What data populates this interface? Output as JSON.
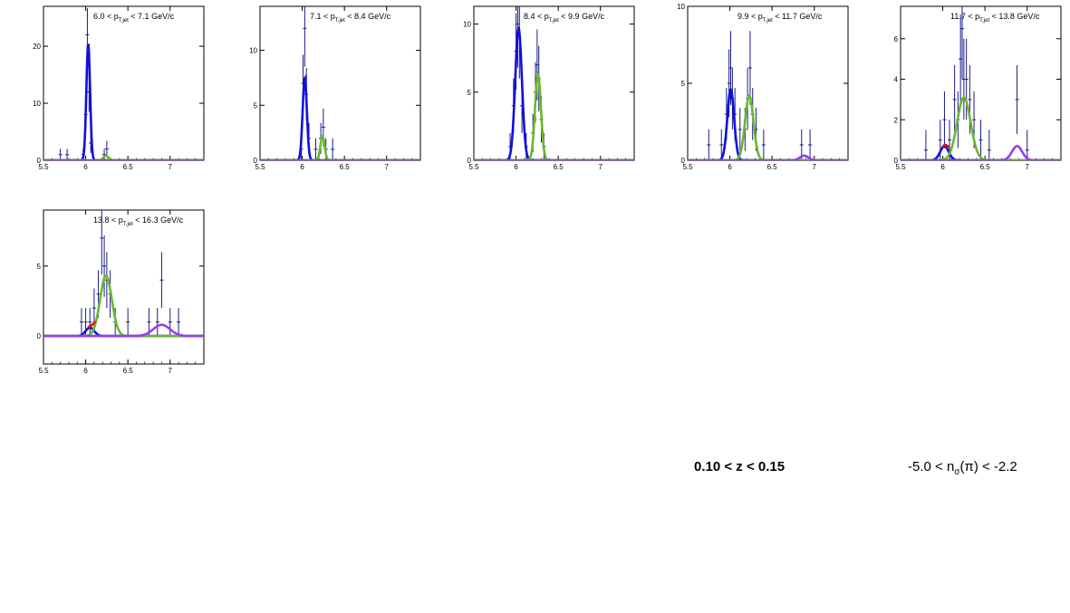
{
  "chart_data": [
    {
      "type": "scatter",
      "title": "6.0 < p_{T,jet} < 7.1 GeV/c",
      "title_parts": {
        "pre": "6.0 < p",
        "sub": "T,jet",
        "post": " < 7.1 GeV/c"
      },
      "xlim": [
        5.5,
        7.4
      ],
      "ylim": [
        0,
        27
      ],
      "xticks": [
        "5.5",
        "6",
        "6.5",
        "7"
      ],
      "xtick_values": [
        5.5,
        6.0,
        6.5,
        7.0
      ],
      "yticks": [
        "0",
        "10",
        "20"
      ],
      "ytick_values": [
        0,
        10,
        20
      ],
      "points": [
        {
          "x": 5.7,
          "y": 1.0,
          "err": 1.0
        },
        {
          "x": 5.78,
          "y": 1.0,
          "err": 1.0
        },
        {
          "x": 5.97,
          "y": 1.0,
          "err": 1.0
        },
        {
          "x": 6.0,
          "y": 8.0,
          "err": 3.0
        },
        {
          "x": 6.02,
          "y": 22.0,
          "err": 4.7
        },
        {
          "x": 6.04,
          "y": 12.0,
          "err": 3.5
        },
        {
          "x": 6.06,
          "y": 3.0,
          "err": 1.7
        },
        {
          "x": 6.22,
          "y": 1.0,
          "err": 1.0
        },
        {
          "x": 6.25,
          "y": 2.0,
          "err": 1.4
        }
      ],
      "fits": [
        {
          "name": "",
          "color": "#1010dd",
          "components": [
            {
              "amp": 20.5,
              "mu": 6.03,
              "sigma": 0.022
            }
          ]
        },
        {
          "name": "",
          "color": "#6ab82e",
          "components": [
            {
              "amp": 0.8,
              "mu": 6.24,
              "sigma": 0.03
            }
          ]
        },
        {
          "name": "",
          "color": "#9a3ee8",
          "components": [
            {
              "amp": 0.0,
              "mu": 6.9,
              "sigma": 0.05
            }
          ]
        }
      ]
    },
    {
      "type": "scatter",
      "title": "7.1 < p_{T,jet} < 8.4 GeV/c",
      "title_parts": {
        "pre": "7.1 < p",
        "sub": "T,jet",
        "post": " < 8.4 GeV/c"
      },
      "xlim": [
        5.5,
        7.4
      ],
      "ylim": [
        0,
        14
      ],
      "xticks": [
        "5.5",
        "6",
        "6.5",
        "7"
      ],
      "xtick_values": [
        5.5,
        6.0,
        6.5,
        7.0
      ],
      "yticks": [
        "0",
        "5",
        "10"
      ],
      "ytick_values": [
        0,
        5,
        10
      ],
      "points": [
        {
          "x": 5.99,
          "y": 1.0,
          "err": 1.0
        },
        {
          "x": 6.01,
          "y": 7.0,
          "err": 2.6
        },
        {
          "x": 6.03,
          "y": 12.0,
          "err": 3.5
        },
        {
          "x": 6.05,
          "y": 6.0,
          "err": 2.4
        },
        {
          "x": 6.08,
          "y": 2.0,
          "err": 1.4
        },
        {
          "x": 6.16,
          "y": 1.0,
          "err": 1.0
        },
        {
          "x": 6.22,
          "y": 2.0,
          "err": 1.4
        },
        {
          "x": 6.25,
          "y": 3.0,
          "err": 1.7
        },
        {
          "x": 6.28,
          "y": 1.0,
          "err": 1.0
        },
        {
          "x": 6.36,
          "y": 1.0,
          "err": 1.0
        }
      ],
      "fits": [
        {
          "name": "",
          "color": "#1010dd",
          "components": [
            {
              "amp": 7.5,
              "mu": 6.03,
              "sigma": 0.025
            }
          ]
        },
        {
          "name": "",
          "color": "#6ab82e",
          "components": [
            {
              "amp": 2.2,
              "mu": 6.24,
              "sigma": 0.025
            }
          ]
        },
        {
          "name": "",
          "color": "#9a3ee8",
          "components": [
            {
              "amp": 0.0,
              "mu": 6.9,
              "sigma": 0.05
            }
          ]
        }
      ]
    },
    {
      "type": "scatter",
      "title": "8.4 < p_{T,jet} < 9.9 GeV/c",
      "title_parts": {
        "pre": "8.4 < p",
        "sub": "T,jet",
        "post": " < 9.9 GeV/c"
      },
      "xlim": [
        5.5,
        7.4
      ],
      "ylim": [
        0,
        11.3
      ],
      "xticks": [
        "5.5",
        "6",
        "6.5",
        "7"
      ],
      "xtick_values": [
        5.5,
        6.0,
        6.5,
        7.0
      ],
      "yticks": [
        "0",
        "5",
        "10"
      ],
      "ytick_values": [
        0,
        5,
        10
      ],
      "points": [
        {
          "x": 5.93,
          "y": 1.0,
          "err": 1.0
        },
        {
          "x": 5.97,
          "y": 4.0,
          "err": 2.0
        },
        {
          "x": 6.0,
          "y": 8.0,
          "err": 2.8
        },
        {
          "x": 6.02,
          "y": 10.0,
          "err": 3.2
        },
        {
          "x": 6.04,
          "y": 9.0,
          "err": 3.0
        },
        {
          "x": 6.07,
          "y": 4.0,
          "err": 2.0
        },
        {
          "x": 6.12,
          "y": 1.0,
          "err": 1.0
        },
        {
          "x": 6.2,
          "y": 2.0,
          "err": 1.4
        },
        {
          "x": 6.23,
          "y": 5.0,
          "err": 2.2
        },
        {
          "x": 6.25,
          "y": 7.0,
          "err": 2.6
        },
        {
          "x": 6.27,
          "y": 6.0,
          "err": 2.4
        },
        {
          "x": 6.3,
          "y": 3.0,
          "err": 1.7
        },
        {
          "x": 6.33,
          "y": 1.0,
          "err": 1.0
        }
      ],
      "fits": [
        {
          "name": "",
          "color": "#1010dd",
          "components": [
            {
              "amp": 9.7,
              "mu": 6.03,
              "sigma": 0.04
            }
          ]
        },
        {
          "name": "",
          "color": "#6ab82e",
          "components": [
            {
              "amp": 6.3,
              "mu": 6.26,
              "sigma": 0.035
            }
          ]
        },
        {
          "name": "",
          "color": "#9a3ee8",
          "components": [
            {
              "amp": 0.0,
              "mu": 6.9,
              "sigma": 0.05
            }
          ]
        }
      ]
    },
    {
      "type": "scatter",
      "title": "9.9 < p_{T,jet} < 11.7 GeV/c",
      "title_parts": {
        "pre": "9.9 < p",
        "sub": "T,jet",
        "post": " < 11.7 GeV/c"
      },
      "xlim": [
        5.5,
        7.4
      ],
      "ylim": [
        0,
        10
      ],
      "xticks": [
        "5.5",
        "6",
        "6.5",
        "7"
      ],
      "xtick_values": [
        5.5,
        6.0,
        6.5,
        7.0
      ],
      "yticks": [
        "0",
        "5",
        "10"
      ],
      "ytick_values": [
        0,
        5,
        10
      ],
      "points": [
        {
          "x": 5.75,
          "y": 1.0,
          "err": 1.0
        },
        {
          "x": 5.9,
          "y": 1.0,
          "err": 1.0
        },
        {
          "x": 5.96,
          "y": 3.0,
          "err": 1.7
        },
        {
          "x": 5.99,
          "y": 5.0,
          "err": 2.2
        },
        {
          "x": 6.01,
          "y": 6.0,
          "err": 2.4
        },
        {
          "x": 6.03,
          "y": 4.0,
          "err": 2.0
        },
        {
          "x": 6.06,
          "y": 3.0,
          "err": 1.7
        },
        {
          "x": 6.12,
          "y": 2.0,
          "err": 1.4
        },
        {
          "x": 6.18,
          "y": 2.0,
          "err": 1.4
        },
        {
          "x": 6.21,
          "y": 4.0,
          "err": 2.0
        },
        {
          "x": 6.24,
          "y": 6.0,
          "err": 2.4
        },
        {
          "x": 6.27,
          "y": 3.0,
          "err": 1.7
        },
        {
          "x": 6.31,
          "y": 2.0,
          "err": 1.4
        },
        {
          "x": 6.4,
          "y": 1.0,
          "err": 1.0
        },
        {
          "x": 6.85,
          "y": 1.0,
          "err": 1.0
        },
        {
          "x": 6.95,
          "y": 1.0,
          "err": 1.0
        }
      ],
      "fits": [
        {
          "name": "",
          "color": "#1010dd",
          "components": [
            {
              "amp": 4.6,
              "mu": 6.01,
              "sigma": 0.04
            }
          ]
        },
        {
          "name": "",
          "color": "#6ab82e",
          "components": [
            {
              "amp": 4.2,
              "mu": 6.23,
              "sigma": 0.05
            }
          ]
        },
        {
          "name": "",
          "color": "#9a3ee8",
          "components": [
            {
              "amp": 0.3,
              "mu": 6.88,
              "sigma": 0.05
            }
          ]
        }
      ]
    },
    {
      "type": "scatter",
      "title": "11.7 < p_{T,jet} < 13.8 GeV/c",
      "title_parts": {
        "pre": "11.7 < p",
        "sub": "T,jet",
        "post": " < 13.8 GeV/c"
      },
      "xlim": [
        5.5,
        7.4
      ],
      "ylim": [
        0,
        7.6
      ],
      "xticks": [
        "5.5",
        "6",
        "6.5",
        "7"
      ],
      "xtick_values": [
        5.5,
        6.0,
        6.5,
        7.0
      ],
      "yticks": [
        "0",
        "2",
        "4",
        "6"
      ],
      "ytick_values": [
        0,
        2,
        4,
        6
      ],
      "points": [
        {
          "x": 5.8,
          "y": 0.5,
          "err": 1.0
        },
        {
          "x": 5.97,
          "y": 1.0,
          "err": 1.0
        },
        {
          "x": 6.02,
          "y": 2.0,
          "err": 1.4
        },
        {
          "x": 6.08,
          "y": 1.0,
          "err": 1.0
        },
        {
          "x": 6.14,
          "y": 3.0,
          "err": 1.7
        },
        {
          "x": 6.18,
          "y": 2.0,
          "err": 1.4
        },
        {
          "x": 6.21,
          "y": 5.0,
          "err": 2.2
        },
        {
          "x": 6.23,
          "y": 6.5,
          "err": 2.5
        },
        {
          "x": 6.25,
          "y": 4.0,
          "err": 2.0
        },
        {
          "x": 6.28,
          "y": 4.0,
          "err": 2.0
        },
        {
          "x": 6.32,
          "y": 3.0,
          "err": 1.7
        },
        {
          "x": 6.37,
          "y": 2.0,
          "err": 1.4
        },
        {
          "x": 6.45,
          "y": 1.0,
          "err": 1.0
        },
        {
          "x": 6.55,
          "y": 0.5,
          "err": 1.0
        },
        {
          "x": 6.88,
          "y": 3.0,
          "err": 1.7
        },
        {
          "x": 7.0,
          "y": 0.5,
          "err": 1.0
        }
      ],
      "fits": [
        {
          "name": "",
          "color": "#1010dd",
          "components": [
            {
              "amp": 0.7,
              "mu": 6.02,
              "sigma": 0.05
            }
          ]
        },
        {
          "name": "",
          "color": "#6ab82e",
          "components": [
            {
              "amp": 3.1,
              "mu": 6.25,
              "sigma": 0.08
            }
          ]
        },
        {
          "name": "",
          "color": "#9a3ee8",
          "components": [
            {
              "amp": 0.7,
              "mu": 6.88,
              "sigma": 0.06
            }
          ]
        }
      ],
      "total_color": "#dd1111"
    },
    {
      "type": "scatter",
      "title": "13.8 < p_{T,jet} < 16.3 GeV/c",
      "title_parts": {
        "pre": "13.8 < p",
        "sub": "T,jet",
        "post": " < 16.3 GeV/c"
      },
      "xlim": [
        5.5,
        7.4
      ],
      "ylim": [
        -2,
        9
      ],
      "xticks": [
        "5.5",
        "6",
        "6.5",
        "7"
      ],
      "xtick_values": [
        5.5,
        6.0,
        6.5,
        7.0
      ],
      "yticks": [
        "0",
        "5"
      ],
      "ytick_values": [
        0,
        5
      ],
      "points": [
        {
          "x": 5.95,
          "y": 1.0,
          "err": 1.0
        },
        {
          "x": 6.0,
          "y": 1.0,
          "err": 1.0
        },
        {
          "x": 6.05,
          "y": 1.0,
          "err": 1.0
        },
        {
          "x": 6.1,
          "y": 2.0,
          "err": 1.4
        },
        {
          "x": 6.15,
          "y": 3.0,
          "err": 1.7
        },
        {
          "x": 6.19,
          "y": 7.0,
          "err": 2.6
        },
        {
          "x": 6.22,
          "y": 5.0,
          "err": 2.2
        },
        {
          "x": 6.25,
          "y": 4.0,
          "err": 2.0
        },
        {
          "x": 6.29,
          "y": 3.0,
          "err": 1.7
        },
        {
          "x": 6.35,
          "y": 1.0,
          "err": 1.0
        },
        {
          "x": 6.5,
          "y": 1.0,
          "err": 1.0
        },
        {
          "x": 6.75,
          "y": 1.0,
          "err": 1.0
        },
        {
          "x": 6.85,
          "y": 1.0,
          "err": 1.0
        },
        {
          "x": 6.9,
          "y": 4.0,
          "err": 2.0
        },
        {
          "x": 7.0,
          "y": 1.0,
          "err": 1.0
        },
        {
          "x": 7.1,
          "y": 1.0,
          "err": 1.0
        }
      ],
      "fits": [
        {
          "name": "",
          "color": "#1010dd",
          "components": [
            {
              "amp": 0.6,
              "mu": 6.05,
              "sigma": 0.05
            }
          ]
        },
        {
          "name": "",
          "color": "#6ab82e",
          "components": [
            {
              "amp": 4.3,
              "mu": 6.24,
              "sigma": 0.07
            }
          ]
        },
        {
          "name": "",
          "color": "#9a3ee8",
          "components": [
            {
              "amp": 0.8,
              "mu": 6.9,
              "sigma": 0.1
            }
          ]
        }
      ],
      "total_color": "#dd1111"
    }
  ],
  "labels": {
    "z_range": "0.10 < z < 0.15",
    "n_sigma_pre": "-5.0 < n",
    "n_sigma_sub": "σ",
    "n_sigma_post": "(π) < -2.2"
  }
}
